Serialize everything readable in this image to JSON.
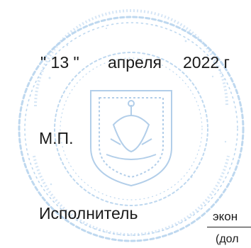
{
  "document": {
    "date": {
      "day": "\" 13 \"",
      "month": "апреля",
      "year": "2022 г"
    },
    "stamp_place": "М.П.",
    "executor": {
      "label": "Исполнитель",
      "position_value": "экон",
      "position_caption": "(дол"
    },
    "seal": {
      "color": "#9fc4e6",
      "icon": "coat-of-arms-seal"
    }
  }
}
